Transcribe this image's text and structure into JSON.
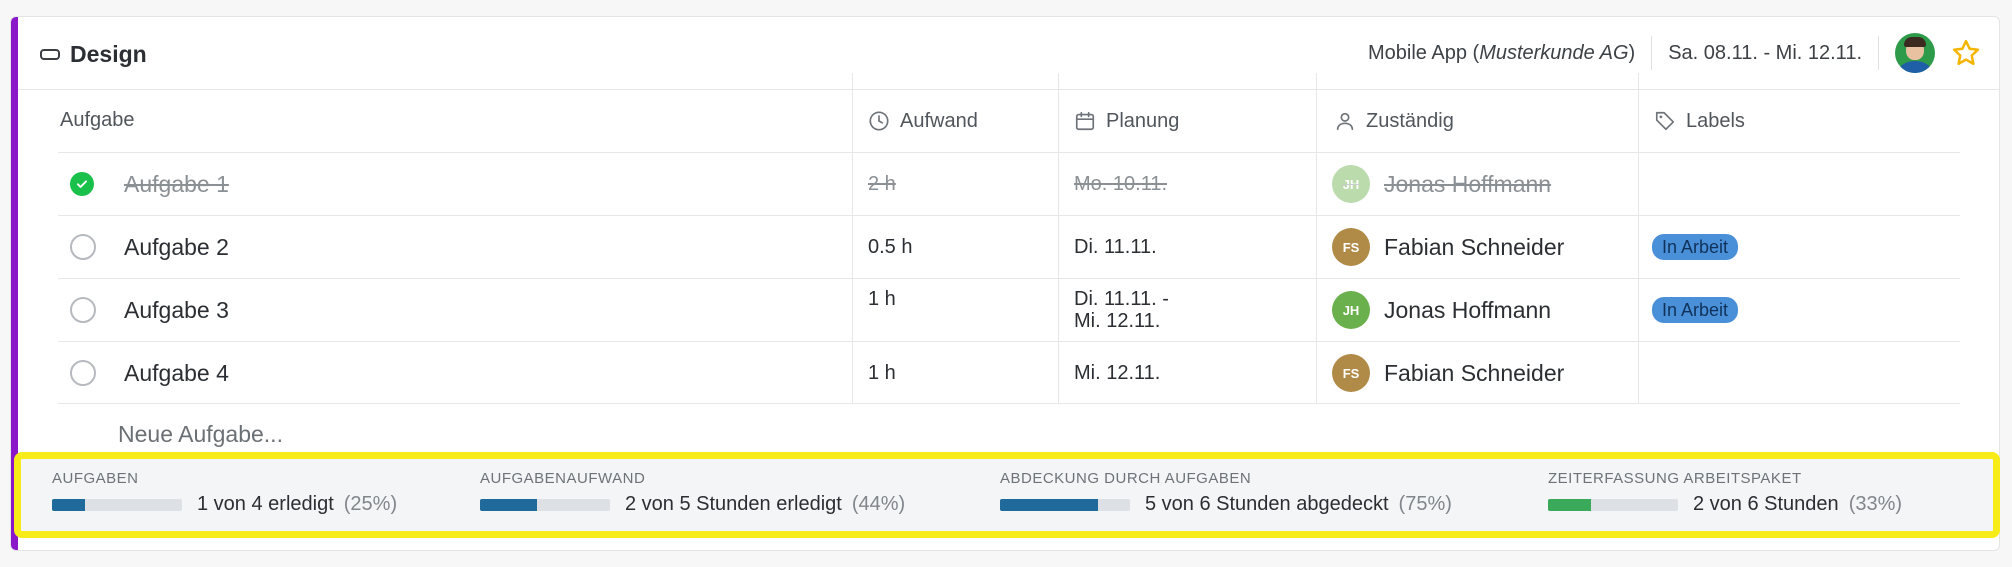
{
  "header": {
    "title": "Design",
    "project_name": "Mobile App (",
    "client": "Musterkunde AG",
    "project_close": ")",
    "date_range": "Sa. 08.11. - Mi. 12.11.",
    "favorite_color": "#f5b400"
  },
  "table": {
    "columns": {
      "task": "Aufgabe",
      "effort": "Aufwand",
      "planning": "Planung",
      "assignee": "Zuständig",
      "labels": "Labels"
    },
    "rows": [
      {
        "done": true,
        "task": "Aufgabe 1",
        "effort": "2 h",
        "planning": "Mo. 10.11.",
        "planning2": "",
        "initials": "JH",
        "assignee": "Jonas Hoffmann",
        "avatar_color": "#6ab04c",
        "label": ""
      },
      {
        "done": false,
        "task": "Aufgabe 2",
        "effort": "0.5 h",
        "planning": "Di. 11.11.",
        "planning2": "",
        "initials": "FS",
        "assignee": "Fabian Schneider",
        "avatar_color": "#b08a47",
        "label": "In Arbeit"
      },
      {
        "done": false,
        "task": "Aufgabe 3",
        "effort": "1 h",
        "planning": "Di. 11.11. -",
        "planning2": "Mi. 12.11.",
        "initials": "JH",
        "assignee": "Jonas Hoffmann",
        "avatar_color": "#6ab04c",
        "label": "In Arbeit"
      },
      {
        "done": false,
        "task": "Aufgabe 4",
        "effort": "1 h",
        "planning": "Mi. 12.11.",
        "planning2": "",
        "initials": "FS",
        "assignee": "Fabian Schneider",
        "avatar_color": "#b08a47",
        "label": ""
      }
    ],
    "new_task_placeholder": "Neue Aufgabe..."
  },
  "stats": [
    {
      "title": "AUFGABEN",
      "text": "1 von 4 erledigt",
      "pct": "(25%)",
      "fraction": 0.25,
      "color": "#1f6a9a"
    },
    {
      "title": "AUFGABENAUFWAND",
      "text": "2 von 5 Stunden erledigt",
      "pct": "(44%)",
      "fraction": 0.44,
      "color": "#1f6a9a"
    },
    {
      "title": "ABDECKUNG DURCH AUFGABEN",
      "text": "5 von 6 Stunden abgedeckt",
      "pct": "(75%)",
      "fraction": 0.75,
      "color": "#1f6a9a"
    },
    {
      "title": "ZEITERFASSUNG ARBEITSPAKET",
      "text": "2 von 6 Stunden",
      "pct": "(33%)",
      "fraction": 0.33,
      "color": "#3aa95a"
    }
  ]
}
